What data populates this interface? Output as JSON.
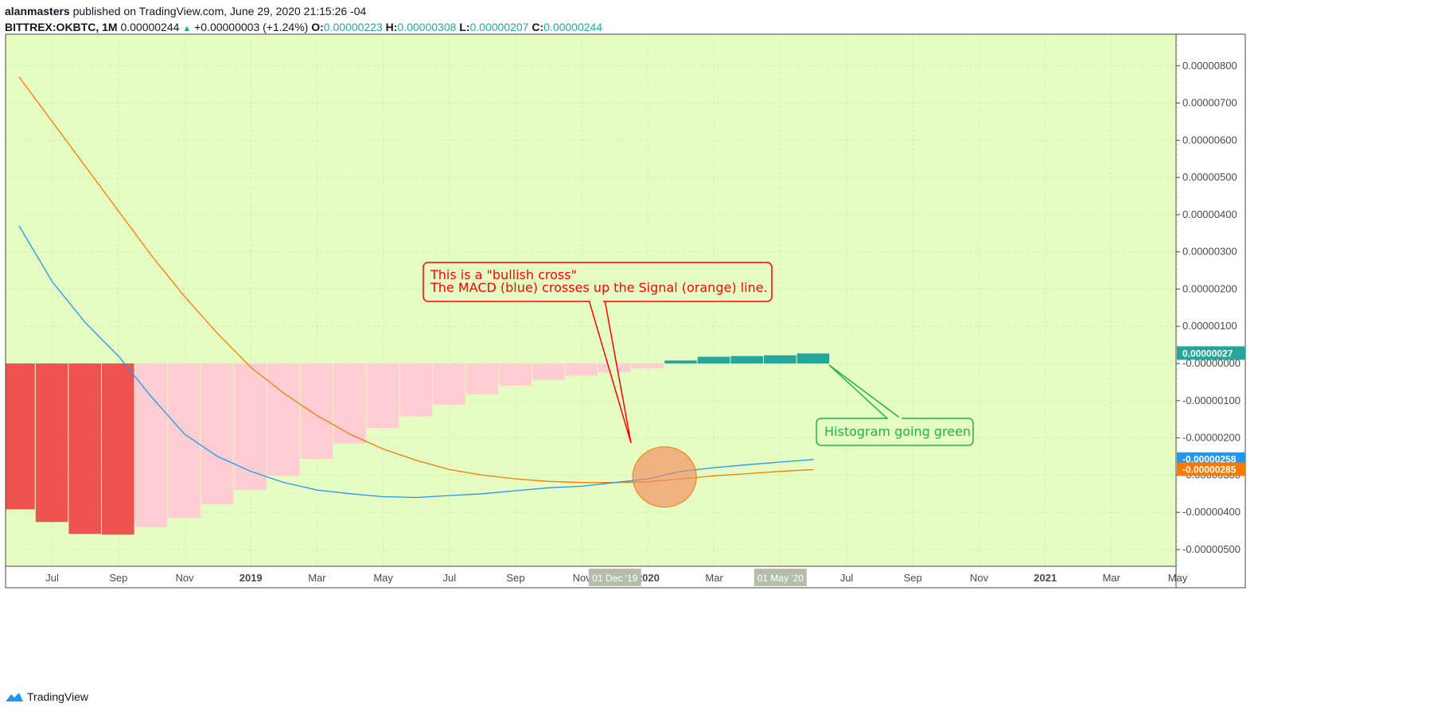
{
  "header": {
    "author": "alanmasters",
    "published": "published on TradingView.com, June 29, 2020 21:15:26 -04",
    "symbol": "BITTREX:OKBTC, 1M",
    "price": "0.00000244",
    "change": "+0.00000003 (+1.24%)",
    "open_label": "O:",
    "open": "0.00000223",
    "high_label": "H:",
    "high": "0.00000308",
    "low_label": "L:",
    "low": "0.00000207",
    "close_label": "C:",
    "close": "0.00000244"
  },
  "footer": {
    "brand": "TradingView"
  },
  "colors": {
    "background": "#e5fcc2",
    "macd": "#2196f3",
    "signal": "#f57c00",
    "hist_neg_strong": "#ef5350",
    "hist_neg_weak": "#ffcdd2",
    "hist_pos": "#26a69a",
    "annotation_red": "#ff0000",
    "annotation_green": "#22b14c"
  },
  "chart_data": {
    "type": "bar",
    "title": "",
    "indicator": "MACD",
    "x_start": "2018-06",
    "x_ticks": [
      {
        "month": 1,
        "label": "Jul",
        "bold": false
      },
      {
        "month": 3,
        "label": "Sep",
        "bold": false
      },
      {
        "month": 5,
        "label": "Nov",
        "bold": false
      },
      {
        "month": 7,
        "label": "2019",
        "bold": true
      },
      {
        "month": 9,
        "label": "Mar",
        "bold": false
      },
      {
        "month": 11,
        "label": "May",
        "bold": false
      },
      {
        "month": 13,
        "label": "Jul",
        "bold": false
      },
      {
        "month": 15,
        "label": "Sep",
        "bold": false
      },
      {
        "month": 17,
        "label": "Nov",
        "bold": false
      },
      {
        "month": 19,
        "label": "2020",
        "bold": true
      },
      {
        "month": 21,
        "label": "Mar",
        "bold": false
      },
      {
        "month": 23,
        "label": "May",
        "bold": false
      },
      {
        "month": 25,
        "label": "Jul",
        "bold": false
      },
      {
        "month": 27,
        "label": "Sep",
        "bold": false
      },
      {
        "month": 29,
        "label": "Nov",
        "bold": false
      },
      {
        "month": 31,
        "label": "2021",
        "bold": true
      },
      {
        "month": 33,
        "label": "Mar",
        "bold": false
      },
      {
        "month": 35,
        "label": "May",
        "bold": false
      }
    ],
    "x_range_months": [
      0,
      35.5
    ],
    "crosshair_labels": [
      {
        "month": 18,
        "label": "01 Dec '19"
      },
      {
        "month": 23,
        "label": "01 May '20"
      }
    ],
    "y_ticks": [
      8e-06,
      7e-06,
      6e-06,
      5e-06,
      4e-06,
      3e-06,
      2e-06,
      1e-06,
      0,
      -1e-06,
      -2e-06,
      -3e-06,
      -4e-06,
      -5e-06
    ],
    "y_tick_labels": [
      "0.00000800",
      "0.00000700",
      "0.00000600",
      "0.00000500",
      "0.00000400",
      "0.00000300",
      "0.00000200",
      "0.00000100",
      "-0.00000000",
      "-0.00000100",
      "-0.00000200",
      "-0.00000300",
      "-0.00000400",
      "-0.00000500"
    ],
    "ylim": [
      -5.45e-06,
      8.85e-06
    ],
    "series": [
      {
        "name": "Histogram",
        "kind": "histogram",
        "months": [
          0,
          1,
          2,
          3,
          4,
          5,
          6,
          7,
          8,
          9,
          10,
          11,
          12,
          13,
          14,
          15,
          16,
          17,
          18,
          19,
          20,
          21,
          22,
          23,
          24
        ],
        "values": [
          -3.92e-06,
          -4.26e-06,
          -4.58e-06,
          -4.6e-06,
          -4.4e-06,
          -4.15e-06,
          -3.78e-06,
          -3.4e-06,
          -3.02e-06,
          -2.57e-06,
          -2.15e-06,
          -1.74e-06,
          -1.42e-06,
          -1.11e-06,
          -8.3e-07,
          -6e-07,
          -4.4e-07,
          -3.3e-07,
          -2.3e-07,
          -1.3e-07,
          8e-08,
          1.8e-07,
          2e-07,
          2.2e-07,
          2.7e-07
        ],
        "strong_count": 4
      },
      {
        "name": "MACD",
        "kind": "line",
        "months": [
          0,
          1,
          2,
          3,
          4,
          5,
          6,
          7,
          8,
          9,
          10,
          11,
          12,
          13,
          14,
          15,
          16,
          17,
          18,
          19,
          20,
          21,
          22,
          23,
          24
        ],
        "values": [
          3.7e-06,
          2.2e-06,
          1.1e-06,
          2e-07,
          -9e-07,
          -1.9e-06,
          -2.5e-06,
          -2.9e-06,
          -3.2e-06,
          -3.4e-06,
          -3.5e-06,
          -3.58e-06,
          -3.6e-06,
          -3.55e-06,
          -3.5e-06,
          -3.42e-06,
          -3.34e-06,
          -3.3e-06,
          -3.2e-06,
          -3.1e-06,
          -2.9e-06,
          -2.8e-06,
          -2.72e-06,
          -2.65e-06,
          -2.58e-06
        ]
      },
      {
        "name": "Signal",
        "kind": "line",
        "months": [
          0,
          1,
          2,
          3,
          4,
          5,
          6,
          7,
          8,
          9,
          10,
          11,
          12,
          13,
          14,
          15,
          16,
          17,
          18,
          19,
          20,
          21,
          22,
          23,
          24
        ],
        "values": [
          7.7e-06,
          6.5e-06,
          5.3e-06,
          4.1e-06,
          2.9e-06,
          1.8e-06,
          8e-07,
          -1e-07,
          -8e-07,
          -1.4e-06,
          -1.9e-06,
          -2.3e-06,
          -2.6e-06,
          -2.85e-06,
          -3e-06,
          -3.1e-06,
          -3.17e-06,
          -3.2e-06,
          -3.2e-06,
          -3.18e-06,
          -3.1e-06,
          -3.02e-06,
          -2.96e-06,
          -2.9e-06,
          -2.85e-06
        ]
      }
    ],
    "value_labels": [
      {
        "value": 2.7e-07,
        "label": "0.00000027",
        "color_key": "hist_pos"
      },
      {
        "value": -2.58e-06,
        "label": "-0.00000258",
        "color_key": "macd"
      },
      {
        "value": -2.85e-06,
        "label": "-0.00000285",
        "color_key": "signal"
      }
    ],
    "annotations": [
      {
        "id": "bullish-cross",
        "lines": [
          "This is a \"bullish cross\"",
          "The MACD (blue) crosses up the Signal (orange) line."
        ],
        "color_key": "annotation_red"
      },
      {
        "id": "histogram-green",
        "lines": [
          "Histogram going green"
        ],
        "color_key": "annotation_green"
      }
    ]
  }
}
